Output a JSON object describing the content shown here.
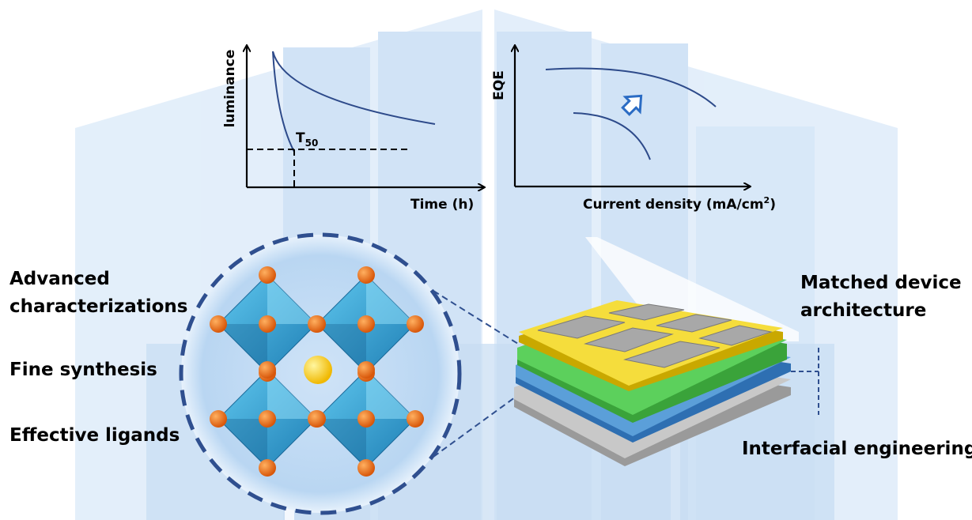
{
  "left_plot": {
    "y_label": "luminance",
    "x_label": "Time (h)",
    "marker": {
      "main": "T",
      "sub": "50"
    }
  },
  "right_plot": {
    "y_label": "EQE",
    "x_label": {
      "main": "Current density (mA/cm",
      "sup": "2",
      "end": ")"
    }
  },
  "left_labels": {
    "advanced": [
      "Advanced",
      "characterizations"
    ],
    "synthesis": "Fine synthesis",
    "ligands": "Effective ligands"
  },
  "right_labels": {
    "architecture": [
      "Matched device",
      "architecture"
    ],
    "interfacial": "Interfacial engineering"
  }
}
